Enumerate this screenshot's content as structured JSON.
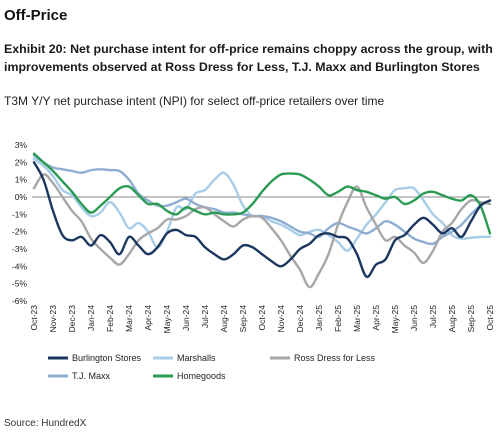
{
  "header": {
    "section_title": "Off-Price",
    "exhibit_title": "Exhibit 20: Net purchase intent for off-price remains choppy across the group, with improvements observed at Ross Dress for Less, T.J. Maxx and Burlington Stores",
    "subtitle": "T3M Y/Y net purchase intent (NPI) for select off-price retailers over time"
  },
  "footer": {
    "source": "Source: HundredX"
  },
  "chart_data": {
    "type": "line",
    "title": "",
    "xlabel": "",
    "ylabel": "",
    "ylim": [
      -6,
      3
    ],
    "y_ticks": [
      "-6%",
      "-5%",
      "-4%",
      "-3%",
      "-2%",
      "-1%",
      "0%",
      "1%",
      "2%",
      "3%"
    ],
    "y_tick_values": [
      -6,
      -5,
      -4,
      -3,
      -2,
      -1,
      0,
      1,
      2,
      3
    ],
    "x_tick_labels": [
      "Oct-23",
      "Nov-23",
      "Dec-23",
      "Jan-24",
      "Feb-24",
      "Mar-24",
      "Apr-24",
      "May-24",
      "Jun-24",
      "Jul-24",
      "Aug-24",
      "Sep-24",
      "Oct-24",
      "Nov-24",
      "Dec-24",
      "Jan-25",
      "Feb-25",
      "Mar-25",
      "Apr-25",
      "May-25",
      "Jun-25",
      "Jul-25",
      "Aug-25",
      "Sep-25",
      "Oct-25"
    ],
    "grid": false,
    "legend_position": "bottom",
    "series": [
      {
        "name": "Burlington Stores",
        "color": "#1b3760",
        "points": [
          [
            0,
            2.0
          ],
          [
            0.5,
            1.0
          ],
          [
            1,
            -0.8
          ],
          [
            1.5,
            -2.2
          ],
          [
            2,
            -2.5
          ],
          [
            2.5,
            -2.3
          ],
          [
            3,
            -2.8
          ],
          [
            3.5,
            -2.2
          ],
          [
            4,
            -2.6
          ],
          [
            4.5,
            -3.3
          ],
          [
            5,
            -2.3
          ],
          [
            5.5,
            -2.8
          ],
          [
            6,
            -3.3
          ],
          [
            6.5,
            -2.9
          ],
          [
            7,
            -2.1
          ],
          [
            7.5,
            -1.9
          ],
          [
            8,
            -2.2
          ],
          [
            8.5,
            -2.3
          ],
          [
            9,
            -2.9
          ],
          [
            9.5,
            -3.3
          ],
          [
            10,
            -3.6
          ],
          [
            10.5,
            -3.3
          ],
          [
            11,
            -2.8
          ],
          [
            11.5,
            -2.9
          ],
          [
            12,
            -3.3
          ],
          [
            12.5,
            -3.7
          ],
          [
            13,
            -4.0
          ],
          [
            13.5,
            -3.6
          ],
          [
            14,
            -3.0
          ],
          [
            14.5,
            -2.7
          ],
          [
            15,
            -2.2
          ],
          [
            15.5,
            -2.1
          ],
          [
            16,
            -2.3
          ],
          [
            16.5,
            -2.4
          ],
          [
            17,
            -3.3
          ],
          [
            17.5,
            -4.6
          ],
          [
            18,
            -3.9
          ],
          [
            18.5,
            -3.6
          ],
          [
            19,
            -2.5
          ],
          [
            19.5,
            -2.2
          ],
          [
            20,
            -1.6
          ],
          [
            20.5,
            -1.2
          ],
          [
            21,
            -1.6
          ],
          [
            21.5,
            -2.1
          ],
          [
            22,
            -1.8
          ],
          [
            22.5,
            -2.3
          ],
          [
            23,
            -1.4
          ],
          [
            23.5,
            -0.5
          ],
          [
            24,
            -0.2
          ]
        ]
      },
      {
        "name": "Marshalls",
        "color": "#a8cde8",
        "points": [
          [
            0,
            2.2
          ],
          [
            0.5,
            1.8
          ],
          [
            1,
            1.2
          ],
          [
            1.5,
            0.4
          ],
          [
            2,
            0.1
          ],
          [
            2.5,
            -0.6
          ],
          [
            3,
            -1.1
          ],
          [
            3.5,
            -0.9
          ],
          [
            4,
            -0.3
          ],
          [
            4.5,
            -0.9
          ],
          [
            5,
            -1.8
          ],
          [
            5.5,
            -1.5
          ],
          [
            6,
            -2.0
          ],
          [
            6.5,
            -2.9
          ],
          [
            7,
            -2.0
          ],
          [
            7.5,
            -0.6
          ],
          [
            8,
            -0.7
          ],
          [
            8.5,
            0.2
          ],
          [
            9,
            0.4
          ],
          [
            9.5,
            1.0
          ],
          [
            10,
            1.4
          ],
          [
            10.5,
            0.7
          ],
          [
            11,
            -0.5
          ],
          [
            11.5,
            -1.1
          ],
          [
            12,
            -1.1
          ],
          [
            12.5,
            -1.4
          ],
          [
            13,
            -1.6
          ],
          [
            13.5,
            -1.9
          ],
          [
            14,
            -2.2
          ],
          [
            14.5,
            -2.0
          ],
          [
            15,
            -1.9
          ],
          [
            15.5,
            -2.2
          ],
          [
            16,
            -2.6
          ],
          [
            16.5,
            -3.1
          ],
          [
            17,
            -2.4
          ],
          [
            17.5,
            -1.6
          ],
          [
            18,
            -1.0
          ],
          [
            18.5,
            -0.3
          ],
          [
            19,
            0.4
          ],
          [
            19.5,
            0.5
          ],
          [
            20,
            0.5
          ],
          [
            20.5,
            -0.2
          ],
          [
            21,
            -1.0
          ],
          [
            21.5,
            -1.5
          ],
          [
            22,
            -2.2
          ],
          [
            22.5,
            -2.4
          ],
          [
            23,
            -2.35
          ],
          [
            23.5,
            -2.3
          ],
          [
            24,
            -2.3
          ]
        ]
      },
      {
        "name": "Ross Dress for Less",
        "color": "#a7a7a7",
        "points": [
          [
            0,
            0.5
          ],
          [
            0.5,
            1.3
          ],
          [
            1,
            0.8
          ],
          [
            1.5,
            0.0
          ],
          [
            2,
            -0.8
          ],
          [
            2.5,
            -1.4
          ],
          [
            3,
            -2.4
          ],
          [
            3.5,
            -3.0
          ],
          [
            4,
            -3.5
          ],
          [
            4.5,
            -3.9
          ],
          [
            5,
            -3.3
          ],
          [
            5.5,
            -2.5
          ],
          [
            6,
            -2.1
          ],
          [
            6.5,
            -1.8
          ],
          [
            7,
            -1.3
          ],
          [
            7.5,
            -1.3
          ],
          [
            8,
            -1.1
          ],
          [
            8.5,
            -0.7
          ],
          [
            9,
            -0.6
          ],
          [
            9.5,
            -1.0
          ],
          [
            10,
            -1.4
          ],
          [
            10.5,
            -1.7
          ],
          [
            11,
            -1.3
          ],
          [
            11.5,
            -1.1
          ],
          [
            12,
            -1.2
          ],
          [
            12.5,
            -1.8
          ],
          [
            13,
            -2.5
          ],
          [
            13.5,
            -3.4
          ],
          [
            14,
            -4.2
          ],
          [
            14.5,
            -5.2
          ],
          [
            15,
            -4.4
          ],
          [
            15.5,
            -3.3
          ],
          [
            16,
            -1.6
          ],
          [
            16.5,
            -0.3
          ],
          [
            17,
            0.6
          ],
          [
            17.5,
            -0.6
          ],
          [
            18,
            -1.6
          ],
          [
            18.5,
            -2.5
          ],
          [
            19,
            -2.3
          ],
          [
            19.5,
            -2.8
          ],
          [
            20,
            -3.2
          ],
          [
            20.5,
            -3.8
          ],
          [
            21,
            -3.1
          ],
          [
            21.5,
            -2.0
          ],
          [
            22,
            -1.5
          ],
          [
            22.5,
            -0.7
          ],
          [
            23,
            -0.2
          ],
          [
            23.5,
            -0.3
          ],
          [
            24,
            -0.4
          ]
        ]
      },
      {
        "name": "T.J. Maxx",
        "color": "#8fadd2",
        "points": [
          [
            0,
            2.4
          ],
          [
            0.5,
            2.0
          ],
          [
            1,
            1.7
          ],
          [
            1.5,
            1.6
          ],
          [
            2,
            1.5
          ],
          [
            2.5,
            1.4
          ],
          [
            3,
            1.55
          ],
          [
            3.5,
            1.6
          ],
          [
            4,
            1.55
          ],
          [
            4.5,
            1.5
          ],
          [
            5,
            1.0
          ],
          [
            5.5,
            0.2
          ],
          [
            6,
            -0.2
          ],
          [
            6.5,
            -0.5
          ],
          [
            7,
            -0.5
          ],
          [
            7.5,
            -0.3
          ],
          [
            8,
            -0.1
          ],
          [
            8.5,
            -0.4
          ],
          [
            9,
            -0.6
          ],
          [
            9.5,
            -0.7
          ],
          [
            10,
            -0.9
          ],
          [
            10.5,
            -0.9
          ],
          [
            11,
            -1.0
          ],
          [
            11.5,
            -1.1
          ],
          [
            12,
            -1.1
          ],
          [
            12.5,
            -1.2
          ],
          [
            13,
            -1.4
          ],
          [
            13.5,
            -1.7
          ],
          [
            14,
            -2.0
          ],
          [
            14.5,
            -2.1
          ],
          [
            15,
            -2.3
          ],
          [
            15.5,
            -1.8
          ],
          [
            16,
            -1.5
          ],
          [
            16.5,
            -1.7
          ],
          [
            17,
            -1.9
          ],
          [
            17.5,
            -2.1
          ],
          [
            18,
            -1.8
          ],
          [
            18.5,
            -1.4
          ],
          [
            19,
            -1.6
          ],
          [
            19.5,
            -2.0
          ],
          [
            20,
            -2.4
          ],
          [
            20.5,
            -2.6
          ],
          [
            21,
            -2.7
          ],
          [
            21.5,
            -2.3
          ],
          [
            22,
            -2.0
          ],
          [
            22.5,
            -1.6
          ],
          [
            23,
            -1.0
          ],
          [
            23.5,
            -0.5
          ],
          [
            24,
            -0.2
          ]
        ]
      },
      {
        "name": "Homegoods",
        "color": "#2b9b54",
        "points": [
          [
            0,
            2.5
          ],
          [
            0.5,
            2.0
          ],
          [
            1,
            1.5
          ],
          [
            1.5,
            0.9
          ],
          [
            2,
            0.3
          ],
          [
            2.5,
            -0.4
          ],
          [
            3,
            -0.9
          ],
          [
            3.5,
            -0.5
          ],
          [
            4,
            0.0
          ],
          [
            4.5,
            0.5
          ],
          [
            5,
            0.6
          ],
          [
            5.5,
            0.1
          ],
          [
            6,
            -0.4
          ],
          [
            6.5,
            -0.4
          ],
          [
            7,
            -0.8
          ],
          [
            7.5,
            -1.0
          ],
          [
            8,
            -0.6
          ],
          [
            8.5,
            -0.8
          ],
          [
            9,
            -1.0
          ],
          [
            9.5,
            -0.9
          ],
          [
            10,
            -1.0
          ],
          [
            10.5,
            -1.0
          ],
          [
            11,
            -0.9
          ],
          [
            11.5,
            -0.4
          ],
          [
            12,
            0.3
          ],
          [
            12.5,
            0.9
          ],
          [
            13,
            1.3
          ],
          [
            13.5,
            1.35
          ],
          [
            14,
            1.3
          ],
          [
            14.5,
            1.0
          ],
          [
            15,
            0.6
          ],
          [
            15.5,
            0.1
          ],
          [
            16,
            0.3
          ],
          [
            16.5,
            0.6
          ],
          [
            17,
            0.4
          ],
          [
            17.5,
            0.3
          ],
          [
            18,
            0.1
          ],
          [
            18.5,
            -0.1
          ],
          [
            19,
            0.0
          ],
          [
            19.5,
            -0.4
          ],
          [
            20,
            -0.2
          ],
          [
            20.5,
            0.2
          ],
          [
            21,
            0.3
          ],
          [
            21.5,
            0.1
          ],
          [
            22,
            -0.1
          ],
          [
            22.5,
            -0.2
          ],
          [
            23,
            0.1
          ],
          [
            23.5,
            -0.5
          ],
          [
            24,
            -2.1
          ]
        ]
      }
    ],
    "legend_order": [
      "Burlington Stores",
      "Marshalls",
      "Ross Dress for Less",
      "T.J. Maxx",
      "Homegoods"
    ]
  }
}
